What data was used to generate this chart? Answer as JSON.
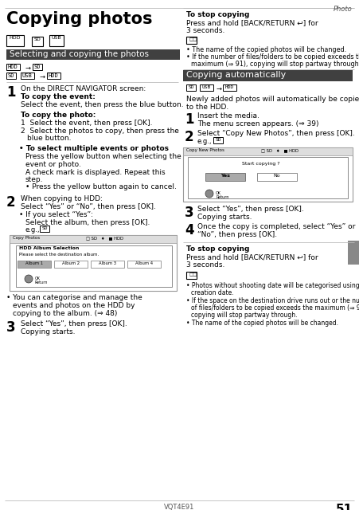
{
  "page_label": "Photo",
  "page_number": "51",
  "footer_code": "VQT4E91",
  "title": "Copying photos",
  "section1_header": "Selecting and copying the photos",
  "section2_header": "Copying automatically",
  "bg_color": "#ffffff",
  "header_bg": "#404040",
  "col_split": 228
}
